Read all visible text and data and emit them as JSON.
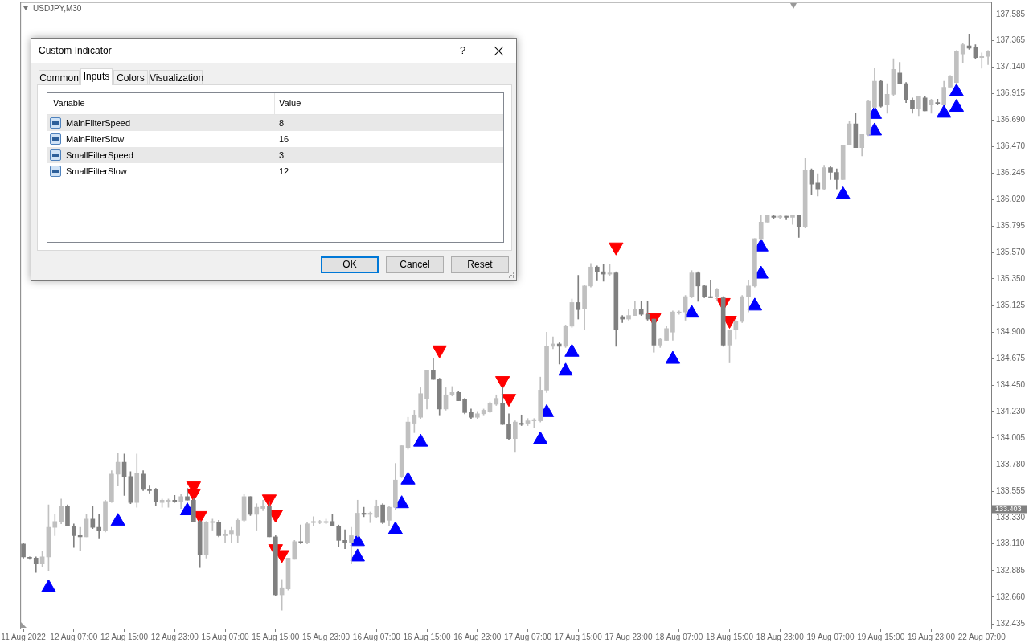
{
  "chart_data": {
    "type": "candlestick",
    "title": "USDJPY,M30",
    "categories": [
      "11 Aug 2022",
      null,
      null,
      null,
      null,
      null,
      null,
      null,
      "12 Aug 07:00",
      null,
      null,
      null,
      null,
      null,
      null,
      null,
      "12 Aug 15:00",
      null,
      null,
      null,
      null,
      null,
      null,
      null,
      "12 Aug 23:00",
      null,
      null,
      null,
      null,
      null,
      null,
      null,
      "15 Aug 07:00",
      null,
      null,
      null,
      null,
      null,
      null,
      null,
      "15 Aug 15:00",
      null,
      null,
      null,
      null,
      null,
      null,
      null,
      "15 Aug 23:00",
      null,
      null,
      null,
      null,
      null,
      null,
      null,
      "16 Aug 07:00",
      null,
      null,
      null,
      null,
      null,
      null,
      null,
      "16 Aug 15:00",
      null,
      null,
      null,
      null,
      null,
      null,
      null,
      "16 Aug 23:00",
      null,
      null,
      null,
      null,
      null,
      null,
      null,
      "17 Aug 07:00",
      null,
      null,
      null,
      null,
      null,
      null,
      null,
      "17 Aug 15:00",
      null,
      null,
      null,
      null,
      null,
      null,
      null,
      "17 Aug 23:00",
      null,
      null,
      null,
      null,
      null,
      null,
      null,
      "18 Aug 07:00",
      null,
      null,
      null,
      null,
      null,
      null,
      null,
      "18 Aug 15:00",
      null,
      null,
      null,
      null,
      null,
      null,
      null,
      "18 Aug 23:00",
      null,
      null,
      null,
      null,
      null,
      null,
      null,
      "19 Aug 07:00",
      null,
      null,
      null,
      null,
      null,
      null,
      null,
      "19 Aug 15:00",
      null,
      null,
      null,
      null,
      null,
      null,
      null,
      "19 Aug 23:00",
      null,
      null,
      null,
      null,
      null,
      null,
      null,
      "22 Aug 07:00",
      null
    ],
    "ohlc": [
      [
        133.11,
        133.12,
        132.99,
        133.0
      ],
      [
        132.99,
        133.0,
        132.98,
        132.99
      ],
      [
        132.99,
        133.0,
        132.87,
        132.94
      ],
      [
        132.94,
        133.05,
        132.92,
        133.0
      ],
      [
        133.0,
        133.44,
        132.88,
        133.25
      ],
      [
        133.25,
        133.36,
        133.18,
        133.3
      ],
      [
        133.3,
        133.49,
        133.28,
        133.43
      ],
      [
        133.43,
        133.44,
        133.26,
        133.26
      ],
      [
        133.26,
        133.28,
        133.08,
        133.18
      ],
      [
        133.18,
        133.25,
        133.05,
        133.17
      ],
      [
        133.17,
        133.36,
        133.17,
        133.32
      ],
      [
        133.32,
        133.43,
        133.24,
        133.25
      ],
      [
        133.25,
        133.36,
        133.16,
        133.22
      ],
      [
        133.22,
        133.48,
        133.21,
        133.47
      ],
      [
        133.47,
        133.73,
        133.46,
        133.7
      ],
      [
        133.7,
        133.88,
        133.6,
        133.8
      ],
      [
        133.8,
        133.87,
        133.52,
        133.68
      ],
      [
        133.68,
        133.72,
        133.45,
        133.46
      ],
      [
        133.46,
        133.87,
        133.42,
        133.71
      ],
      [
        133.7,
        133.73,
        133.56,
        133.57
      ],
      [
        133.57,
        133.6,
        133.54,
        133.56
      ],
      [
        133.57,
        133.58,
        133.43,
        133.47
      ],
      [
        133.46,
        133.49,
        133.42,
        133.48
      ],
      [
        133.47,
        133.49,
        133.42,
        133.48
      ],
      [
        133.48,
        133.52,
        133.46,
        133.47
      ],
      [
        133.47,
        133.53,
        133.41,
        133.51
      ],
      [
        133.51,
        133.58,
        133.48,
        133.48
      ],
      [
        133.48,
        133.5,
        133.3,
        133.3
      ],
      [
        133.3,
        133.31,
        132.91,
        133.02
      ],
      [
        133.02,
        133.3,
        132.99,
        133.29
      ],
      [
        133.29,
        133.32,
        133.22,
        133.3
      ],
      [
        133.29,
        133.31,
        133.17,
        133.18
      ],
      [
        133.18,
        133.23,
        133.12,
        133.19
      ],
      [
        133.19,
        133.25,
        133.12,
        133.22
      ],
      [
        133.18,
        133.32,
        133.12,
        133.31
      ],
      [
        133.31,
        133.53,
        133.3,
        133.51
      ],
      [
        133.51,
        133.51,
        133.35,
        133.36
      ],
      [
        133.36,
        133.45,
        133.22,
        133.42
      ],
      [
        133.41,
        133.48,
        133.39,
        133.43
      ],
      [
        133.43,
        133.47,
        133.17,
        133.17
      ],
      [
        133.17,
        133.18,
        132.67,
        132.68
      ],
      [
        132.68,
        132.81,
        132.55,
        132.74
      ],
      [
        132.73,
        132.99,
        132.72,
        132.99
      ],
      [
        132.98,
        133.14,
        132.98,
        133.13
      ],
      [
        133.13,
        133.27,
        133.11,
        133.12
      ],
      [
        133.12,
        133.29,
        133.11,
        133.28
      ],
      [
        133.29,
        133.34,
        133.26,
        133.3
      ],
      [
        133.29,
        133.31,
        133.28,
        133.3
      ],
      [
        133.29,
        133.32,
        133.28,
        133.3
      ],
      [
        133.3,
        133.36,
        133.26,
        133.26
      ],
      [
        133.26,
        133.27,
        133.09,
        133.14
      ],
      [
        133.14,
        133.23,
        133.07,
        133.12
      ],
      [
        133.12,
        133.25,
        132.94,
        133.18
      ],
      [
        133.18,
        133.48,
        133.17,
        133.37
      ],
      [
        133.37,
        133.42,
        133.34,
        133.36
      ],
      [
        133.36,
        133.38,
        133.29,
        133.37
      ],
      [
        133.34,
        133.48,
        133.33,
        133.43
      ],
      [
        133.44,
        133.45,
        133.28,
        133.29
      ],
      [
        133.31,
        133.43,
        133.26,
        133.42
      ],
      [
        133.42,
        133.79,
        133.4,
        133.65
      ],
      [
        133.68,
        133.94,
        133.67,
        133.94
      ],
      [
        133.92,
        134.18,
        133.91,
        134.14
      ],
      [
        134.13,
        134.24,
        134.05,
        134.2
      ],
      [
        134.18,
        134.43,
        134.17,
        134.38
      ],
      [
        134.34,
        134.58,
        134.25,
        134.58
      ],
      [
        134.58,
        134.68,
        134.5,
        134.5
      ],
      [
        134.5,
        134.51,
        134.2,
        134.25
      ],
      [
        134.25,
        134.43,
        134.24,
        134.37
      ],
      [
        134.37,
        134.44,
        134.36,
        134.39
      ],
      [
        134.39,
        134.4,
        134.32,
        134.32
      ],
      [
        134.33,
        134.34,
        134.21,
        134.22
      ],
      [
        134.22,
        134.25,
        134.17,
        134.18
      ],
      [
        134.18,
        134.23,
        134.17,
        134.21
      ],
      [
        134.21,
        134.25,
        134.2,
        134.24
      ],
      [
        134.23,
        134.31,
        134.22,
        134.3
      ],
      [
        134.29,
        134.37,
        134.28,
        134.34
      ],
      [
        134.3,
        134.43,
        134.12,
        134.12
      ],
      [
        134.12,
        134.21,
        133.99,
        134.0
      ],
      [
        134.0,
        134.15,
        133.89,
        134.14
      ],
      [
        134.13,
        134.2,
        134.11,
        134.12
      ],
      [
        134.13,
        134.17,
        134.11,
        134.15
      ],
      [
        134.15,
        134.17,
        134.09,
        134.16
      ],
      [
        134.15,
        134.52,
        134.14,
        134.41
      ],
      [
        134.41,
        134.9,
        134.39,
        134.78
      ],
      [
        134.78,
        134.86,
        134.76,
        134.8
      ],
      [
        134.8,
        134.81,
        134.63,
        134.78
      ],
      [
        134.78,
        134.96,
        134.77,
        134.95
      ],
      [
        134.95,
        135.18,
        134.94,
        135.15
      ],
      [
        135.15,
        135.38,
        135.01,
        135.09
      ],
      [
        135.1,
        135.3,
        134.92,
        135.29
      ],
      [
        135.29,
        135.48,
        135.28,
        135.45
      ],
      [
        135.45,
        135.46,
        135.34,
        135.41
      ],
      [
        135.41,
        135.47,
        135.33,
        135.39
      ],
      [
        135.39,
        135.47,
        135.38,
        135.4
      ],
      [
        135.4,
        135.41,
        134.78,
        134.92
      ],
      [
        135.03,
        135.04,
        134.98,
        135.01
      ],
      [
        135.01,
        135.09,
        135.0,
        135.04
      ],
      [
        135.04,
        135.16,
        135.04,
        135.09
      ],
      [
        135.09,
        135.16,
        135.04,
        135.05
      ],
      [
        135.05,
        135.16,
        135.0,
        135.01
      ],
      [
        135.01,
        135.01,
        134.73,
        134.79
      ],
      [
        134.79,
        134.85,
        134.77,
        134.84
      ],
      [
        134.83,
        134.95,
        134.83,
        134.93
      ],
      [
        134.9,
        135.08,
        134.83,
        135.07
      ],
      [
        135.06,
        135.08,
        135.05,
        135.07
      ],
      [
        135.07,
        135.21,
        135.0,
        135.2
      ],
      [
        135.2,
        135.42,
        135.19,
        135.4
      ],
      [
        135.4,
        135.41,
        135.16,
        135.29
      ],
      [
        135.29,
        135.3,
        135.19,
        135.2
      ],
      [
        135.2,
        135.34,
        135.19,
        135.19
      ],
      [
        135.2,
        135.27,
        135.17,
        135.26
      ],
      [
        135.19,
        135.2,
        134.78,
        134.79
      ],
      [
        134.79,
        134.92,
        134.64,
        134.92
      ],
      [
        134.92,
        135.0,
        134.84,
        134.99
      ],
      [
        134.99,
        135.21,
        134.98,
        135.2
      ],
      [
        135.2,
        135.34,
        135.07,
        135.29
      ],
      [
        135.29,
        135.69,
        135.28,
        135.69
      ],
      [
        135.69,
        135.89,
        135.68,
        135.83
      ],
      [
        135.83,
        135.89,
        135.83,
        135.89
      ],
      [
        135.88,
        135.89,
        135.86,
        135.87
      ],
      [
        135.87,
        135.89,
        135.86,
        135.88
      ],
      [
        135.88,
        135.88,
        135.85,
        135.87
      ],
      [
        135.87,
        135.89,
        135.81,
        135.89
      ],
      [
        135.89,
        135.89,
        135.7,
        135.79
      ],
      [
        135.79,
        136.37,
        135.78,
        136.27
      ],
      [
        136.27,
        136.28,
        136.06,
        136.15
      ],
      [
        136.16,
        136.24,
        136.05,
        136.11
      ],
      [
        136.11,
        136.31,
        136.1,
        136.29
      ],
      [
        136.29,
        136.3,
        136.19,
        136.25
      ],
      [
        136.25,
        136.28,
        136.11,
        136.19
      ],
      [
        136.19,
        136.48,
        136.19,
        136.48
      ],
      [
        136.48,
        136.68,
        136.48,
        136.66
      ],
      [
        136.66,
        136.75,
        136.46,
        136.46
      ],
      [
        136.46,
        136.57,
        136.39,
        136.57
      ],
      [
        136.57,
        136.86,
        136.56,
        136.85
      ],
      [
        136.8,
        137.13,
        136.79,
        137.02
      ],
      [
        137.02,
        137.03,
        136.8,
        136.81
      ],
      [
        136.82,
        137.0,
        136.75,
        136.91
      ],
      [
        136.91,
        137.21,
        136.9,
        137.12
      ],
      [
        137.09,
        137.18,
        137.0,
        137.0
      ],
      [
        137.0,
        137.01,
        136.84,
        136.86
      ],
      [
        136.86,
        136.88,
        136.75,
        136.79
      ],
      [
        136.79,
        136.89,
        136.73,
        136.89
      ],
      [
        136.88,
        136.89,
        136.77,
        136.77
      ],
      [
        136.82,
        136.87,
        136.75,
        136.86
      ],
      [
        136.84,
        136.87,
        136.82,
        136.83
      ],
      [
        136.82,
        137.02,
        136.82,
        136.97
      ],
      [
        136.97,
        137.07,
        136.97,
        137.06
      ],
      [
        137.01,
        137.28,
        137.0,
        137.27
      ],
      [
        137.25,
        137.34,
        137.18,
        137.33
      ],
      [
        137.32,
        137.42,
        137.29,
        137.3
      ],
      [
        137.31,
        137.33,
        137.21,
        137.22
      ],
      [
        137.22,
        137.26,
        137.13,
        137.23
      ],
      [
        137.23,
        137.28,
        137.16,
        137.27
      ]
    ],
    "colors": [
      "#808080",
      "#808080",
      "#808080",
      "#c0c0c0",
      "#c0c0c0",
      "#c0c0c0",
      "#c0c0c0",
      "#808080",
      "#808080",
      "#808080",
      "#c0c0c0",
      "#808080",
      "#808080",
      "#c0c0c0",
      "#c0c0c0",
      "#c0c0c0",
      "#808080",
      "#808080",
      "#c0c0c0",
      "#808080",
      "#808080",
      "#808080",
      "#c0c0c0",
      "#c0c0c0",
      "#808080",
      "#c0c0c0",
      "#808080",
      "#808080",
      "#808080",
      "#c0c0c0",
      "#c0c0c0",
      "#808080",
      "#c0c0c0",
      "#c0c0c0",
      "#c0c0c0",
      "#c0c0c0",
      "#808080",
      "#c0c0c0",
      "#c0c0c0",
      "#808080",
      "#808080",
      "#c0c0c0",
      "#c0c0c0",
      "#c0c0c0",
      "#808080",
      "#c0c0c0",
      "#c0c0c0",
      "#c0c0c0",
      "#c0c0c0",
      "#808080",
      "#808080",
      "#808080",
      "#c0c0c0",
      "#c0c0c0",
      "#808080",
      "#c0c0c0",
      "#c0c0c0",
      "#808080",
      "#c0c0c0",
      "#c0c0c0",
      "#c0c0c0",
      "#c0c0c0",
      "#c0c0c0",
      "#c0c0c0",
      "#c0c0c0",
      "#808080",
      "#808080",
      "#c0c0c0",
      "#c0c0c0",
      "#808080",
      "#808080",
      "#808080",
      "#c0c0c0",
      "#c0c0c0",
      "#c0c0c0",
      "#c0c0c0",
      "#808080",
      "#808080",
      "#c0c0c0",
      "#808080",
      "#c0c0c0",
      "#c0c0c0",
      "#c0c0c0",
      "#c0c0c0",
      "#c0c0c0",
      "#808080",
      "#c0c0c0",
      "#c0c0c0",
      "#808080",
      "#c0c0c0",
      "#c0c0c0",
      "#808080",
      "#808080",
      "#c0c0c0",
      "#808080",
      "#808080",
      "#c0c0c0",
      "#c0c0c0",
      "#808080",
      "#808080",
      "#808080",
      "#c0c0c0",
      "#c0c0c0",
      "#c0c0c0",
      "#c0c0c0",
      "#c0c0c0",
      "#c0c0c0",
      "#808080",
      "#808080",
      "#808080",
      "#c0c0c0",
      "#808080",
      "#c0c0c0",
      "#c0c0c0",
      "#c0c0c0",
      "#c0c0c0",
      "#c0c0c0",
      "#c0c0c0",
      "#c0c0c0",
      "#808080",
      "#c0c0c0",
      "#808080",
      "#c0c0c0",
      "#808080",
      "#c0c0c0",
      "#808080",
      "#808080",
      "#c0c0c0",
      "#808080",
      "#808080",
      "#c0c0c0",
      "#c0c0c0",
      "#808080",
      "#c0c0c0",
      "#c0c0c0",
      "#c0c0c0",
      "#808080",
      "#c0c0c0",
      "#c0c0c0",
      "#808080",
      "#808080",
      "#808080",
      "#c0c0c0",
      "#808080",
      "#c0c0c0",
      "#808080",
      "#c0c0c0",
      "#c0c0c0",
      "#c0c0c0",
      "#c0c0c0",
      "#808080",
      "#808080",
      "#c0c0c0",
      "#c0c0c0"
    ],
    "series": [
      {
        "type": "scatter",
        "color": "#0000ff",
        "values": [
          null,
          null,
          null,
          null,
          132.74,
          null,
          null,
          null,
          null,
          null,
          null,
          null,
          null,
          null,
          null,
          133.3,
          null,
          null,
          null,
          null,
          null,
          null,
          null,
          null,
          null,
          null,
          133.39,
          null,
          null,
          null,
          null,
          null,
          null,
          null,
          null,
          null,
          null,
          null,
          null,
          null,
          null,
          null,
          null,
          null,
          null,
          null,
          null,
          null,
          null,
          null,
          null,
          null,
          null,
          133.0,
          null,
          null,
          null,
          null,
          null,
          133.23,
          133.45,
          133.65,
          null,
          133.97,
          null,
          null,
          null,
          null,
          null,
          null,
          null,
          null,
          null,
          null,
          null,
          null,
          null,
          null,
          null,
          null,
          null,
          null,
          133.99,
          134.22,
          null,
          null,
          134.57,
          134.73,
          null,
          null,
          null,
          null,
          null,
          null,
          null,
          null,
          null,
          null,
          null,
          null,
          null,
          null,
          null,
          134.67,
          null,
          null,
          135.06,
          null,
          null,
          null,
          null,
          null,
          null,
          null,
          null,
          null,
          135.12,
          135.39,
          null,
          null,
          null,
          null,
          null,
          null,
          null,
          null,
          null,
          null,
          null,
          null,
          136.06,
          null,
          null,
          null,
          null,
          136.6,
          null,
          null,
          null,
          null,
          null,
          null,
          null,
          null,
          null,
          null,
          136.75,
          null,
          136.8,
          null,
          null,
          null,
          null,
          null
        ]
      },
      {
        "type": "scatter",
        "color": "#0000ff",
        "values": [
          null,
          null,
          null,
          null,
          null,
          null,
          null,
          null,
          null,
          null,
          null,
          null,
          null,
          null,
          null,
          null,
          null,
          null,
          null,
          null,
          null,
          null,
          null,
          null,
          null,
          null,
          null,
          null,
          null,
          null,
          null,
          null,
          null,
          null,
          null,
          null,
          null,
          null,
          null,
          null,
          null,
          null,
          null,
          null,
          null,
          null,
          null,
          null,
          null,
          null,
          null,
          null,
          null,
          133.13,
          null,
          null,
          null,
          null,
          null,
          null,
          null,
          null,
          null,
          null,
          null,
          null,
          null,
          null,
          null,
          null,
          null,
          null,
          null,
          null,
          null,
          null,
          null,
          null,
          null,
          null,
          null,
          null,
          null,
          null,
          null,
          null,
          null,
          null,
          null,
          null,
          null,
          null,
          null,
          null,
          null,
          null,
          null,
          null,
          null,
          null,
          null,
          null,
          null,
          null,
          null,
          null,
          null,
          null,
          null,
          null,
          null,
          null,
          null,
          null,
          null,
          null,
          null,
          135.62,
          null,
          null,
          null,
          null,
          null,
          null,
          null,
          null,
          null,
          null,
          null,
          null,
          null,
          null,
          null,
          null,
          null,
          136.74,
          null,
          null,
          null,
          null,
          null,
          null,
          null,
          null,
          null,
          null,
          null,
          null,
          136.93,
          null,
          null,
          null,
          null,
          null
        ]
      },
      {
        "type": "scatter",
        "color": "#ff0000",
        "values": [
          null,
          null,
          null,
          null,
          null,
          null,
          null,
          null,
          null,
          null,
          null,
          null,
          null,
          null,
          null,
          null,
          null,
          null,
          null,
          null,
          null,
          null,
          null,
          null,
          null,
          null,
          null,
          133.6,
          133.35,
          null,
          null,
          null,
          null,
          null,
          null,
          null,
          null,
          null,
          null,
          133.49,
          133.36,
          133.02,
          null,
          null,
          null,
          null,
          null,
          null,
          null,
          null,
          null,
          null,
          null,
          null,
          null,
          null,
          null,
          null,
          null,
          null,
          null,
          null,
          null,
          null,
          null,
          null,
          134.75,
          null,
          null,
          null,
          null,
          null,
          null,
          null,
          null,
          null,
          134.49,
          134.34,
          null,
          null,
          null,
          null,
          null,
          null,
          null,
          null,
          null,
          null,
          null,
          null,
          null,
          null,
          null,
          null,
          135.62,
          null,
          null,
          null,
          null,
          null,
          135.02,
          null,
          null,
          null,
          null,
          null,
          null,
          null,
          null,
          null,
          null,
          135.15,
          135.0,
          null,
          null,
          null,
          null,
          null,
          null,
          null,
          null,
          null,
          null,
          null,
          null,
          null,
          null,
          null,
          null,
          null,
          null,
          null,
          null,
          null,
          null,
          null,
          null,
          null,
          null,
          null,
          null,
          null,
          null,
          null,
          null,
          null,
          null,
          null,
          null,
          null,
          null,
          null,
          null,
          null
        ]
      },
      {
        "type": "scatter",
        "color": "#ff0000",
        "values": [
          null,
          null,
          null,
          null,
          null,
          null,
          null,
          null,
          null,
          null,
          null,
          null,
          null,
          null,
          null,
          null,
          null,
          null,
          null,
          null,
          null,
          null,
          null,
          null,
          null,
          null,
          null,
          133.54,
          null,
          null,
          null,
          null,
          null,
          null,
          null,
          null,
          null,
          null,
          null,
          null,
          133.07,
          null,
          null,
          null,
          null,
          null,
          null,
          null,
          null,
          null,
          null,
          null,
          null,
          null,
          null,
          null,
          null,
          null,
          null,
          null,
          null,
          null,
          null,
          null,
          null,
          null,
          null,
          null,
          null,
          null,
          null,
          null,
          null,
          null,
          null,
          null,
          null,
          null,
          null,
          null,
          null,
          null,
          null,
          null,
          null,
          null,
          null,
          null,
          null,
          null,
          null,
          null,
          null,
          null,
          null,
          null,
          null,
          null,
          null,
          null,
          null,
          null,
          null,
          null,
          null,
          null,
          null,
          null,
          null,
          null,
          null,
          null,
          null,
          null,
          null,
          null,
          null,
          null,
          null,
          null,
          null,
          null,
          null,
          null,
          null,
          null,
          null,
          null,
          null,
          null,
          null,
          null,
          null,
          null,
          null,
          null,
          null,
          null,
          null,
          null,
          null,
          null,
          null,
          null,
          null,
          null,
          null,
          null,
          null,
          null,
          null,
          null,
          null,
          null
        ]
      }
    ],
    "marker": "triangle",
    "ylim": [
      132.395,
      137.69
    ],
    "yticks": [
      137.585,
      137.365,
      {
        "value": 137.14,
        "label": "137.140"
      },
      136.915,
      {
        "value": 136.69,
        "label": "136.690"
      },
      {
        "value": 136.47,
        "label": "136.470"
      },
      136.245,
      {
        "value": 136.02,
        "label": "136.020"
      },
      135.795,
      {
        "value": 135.57,
        "label": "135.570"
      },
      {
        "value": 135.35,
        "label": "135.350"
      },
      135.125,
      {
        "value": 134.9,
        "label": "134.900"
      },
      134.675,
      {
        "value": 134.45,
        "label": "134.450"
      },
      {
        "value": 134.23,
        "label": "134.230"
      },
      134.005,
      {
        "value": 133.78,
        "label": "133.780"
      },
      133.555,
      {
        "value": 133.33,
        "label": "133.330"
      },
      {
        "value": 133.11,
        "label": "133.110"
      },
      132.885,
      {
        "value": 132.66,
        "label": "132.660"
      },
      132.435
    ],
    "ref_lines": [
      {
        "axis": "y",
        "value": 133.403,
        "label": "133.403",
        "color": "#c8c8c8"
      }
    ],
    "annotations": [
      "Custom Indicator",
      "?",
      "Common",
      "Inputs",
      "Colors",
      "Visualization",
      "Variable",
      "Value",
      "MainFilterSpeed",
      "8",
      "MainFilterSlow",
      "16",
      "SmallFilterSpeed",
      "3",
      "SmallFilterSlow",
      "12",
      "OK",
      "Cancel",
      "Reset"
    ]
  }
}
